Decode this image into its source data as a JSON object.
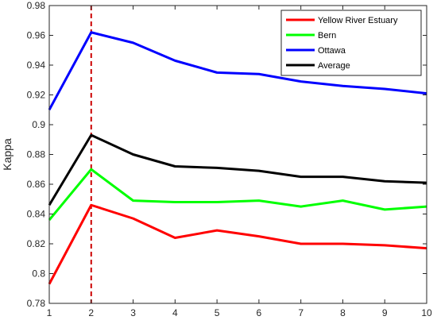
{
  "chart_data": {
    "type": "line",
    "title": "",
    "xlabel": "",
    "ylabel": "Kappa",
    "x": [
      1,
      2,
      3,
      4,
      5,
      6,
      7,
      8,
      9,
      10
    ],
    "xlim": [
      1,
      10
    ],
    "ylim": [
      0.78,
      0.98
    ],
    "x_ticks": [
      1,
      2,
      3,
      4,
      5,
      6,
      7,
      8,
      9,
      10
    ],
    "y_ticks": [
      0.78,
      0.8,
      0.82,
      0.84,
      0.86,
      0.88,
      0.9,
      0.92,
      0.94,
      0.96,
      0.98
    ],
    "grid": false,
    "legend_position": "top-right",
    "series": [
      {
        "name": "Yellow River Estuary",
        "color": "#ff0000",
        "values": [
          0.793,
          0.846,
          0.837,
          0.824,
          0.829,
          0.825,
          0.82,
          0.82,
          0.819,
          0.817
        ]
      },
      {
        "name": "Bern",
        "color": "#00ff00",
        "values": [
          0.836,
          0.87,
          0.849,
          0.848,
          0.848,
          0.849,
          0.845,
          0.849,
          0.843,
          0.845
        ]
      },
      {
        "name": "Ottawa",
        "color": "#0000ff",
        "values": [
          0.91,
          0.962,
          0.955,
          0.943,
          0.935,
          0.934,
          0.929,
          0.926,
          0.924,
          0.921
        ]
      },
      {
        "name": "Average",
        "color": "#000000",
        "values": [
          0.846,
          0.893,
          0.88,
          0.872,
          0.871,
          0.869,
          0.865,
          0.865,
          0.862,
          0.861
        ]
      }
    ],
    "reference_line": {
      "x": 2,
      "color": "#cc0000",
      "style": "dashed"
    }
  }
}
